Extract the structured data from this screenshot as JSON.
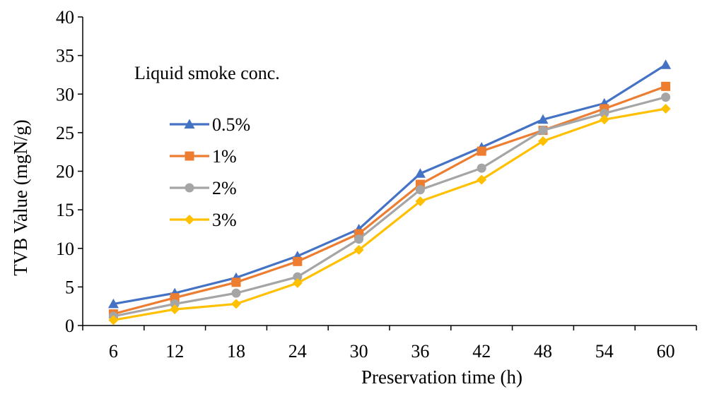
{
  "chart_data": {
    "type": "line",
    "title": "",
    "xlabel": "Preservation time (h)",
    "ylabel": "TVB Value (mgN/g)",
    "categories": [
      "6",
      "12",
      "18",
      "24",
      "30",
      "36",
      "42",
      "48",
      "54",
      "60"
    ],
    "ylim": [
      0,
      40
    ],
    "yticks": [
      0,
      5,
      10,
      15,
      20,
      25,
      30,
      35,
      40
    ],
    "grid": false,
    "legend": {
      "title": "Liquid smoke conc.",
      "placement": "upper-left"
    },
    "series": [
      {
        "name": "0.5%",
        "color": "#4472C4",
        "marker": "triangle",
        "values": [
          2.8,
          4.2,
          6.2,
          9.0,
          12.5,
          19.7,
          23.1,
          26.7,
          28.8,
          33.8
        ]
      },
      {
        "name": "1%",
        "color": "#ED7D31",
        "marker": "square",
        "values": [
          1.5,
          3.6,
          5.6,
          8.3,
          11.9,
          18.3,
          22.6,
          25.3,
          28.1,
          31.0
        ]
      },
      {
        "name": "2%",
        "color": "#A5A5A5",
        "marker": "circle",
        "values": [
          1.2,
          2.8,
          4.2,
          6.3,
          11.2,
          17.6,
          20.4,
          25.3,
          27.5,
          29.6
        ]
      },
      {
        "name": "3%",
        "color": "#FFC000",
        "marker": "diamond",
        "values": [
          0.7,
          2.1,
          2.8,
          5.5,
          9.8,
          16.1,
          18.9,
          23.9,
          26.7,
          28.1
        ]
      }
    ]
  }
}
